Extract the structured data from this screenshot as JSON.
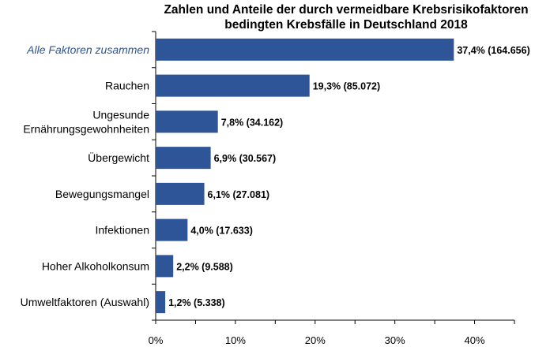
{
  "chart_data": {
    "type": "bar",
    "orientation": "horizontal",
    "title": [
      "Zahlen und Anteile der durch vermeidbare Krebsrisikofaktoren",
      "bedingten Krebsfälle in Deutschland 2018"
    ],
    "categories": [
      [
        "Alle Faktoren zusammen"
      ],
      [
        "Rauchen"
      ],
      [
        "Ungesunde",
        "Ernährungsgewohnheiten"
      ],
      [
        "Übergewicht"
      ],
      [
        "Bewegungsmangel"
      ],
      [
        "Infektionen"
      ],
      [
        "Hoher Alkoholkonsum"
      ],
      [
        "Umweltfaktoren (Auswahl)"
      ]
    ],
    "highlighted_category_index": 0,
    "values": [
      37.4,
      19.3,
      7.8,
      6.9,
      6.1,
      4.0,
      2.2,
      1.2
    ],
    "data_labels": [
      "37,4% (164.656)",
      "19,3% (85.072)",
      "7,8% (34.162)",
      "6,9% (30.567)",
      "6,1% (27.081)",
      "4,0% (17.633)",
      "2,2% (9.588)",
      "1,2% (5.338)"
    ],
    "xlim": [
      0,
      45
    ],
    "x_ticks": [
      0,
      10,
      20,
      30,
      40
    ],
    "x_tick_labels": [
      "0%",
      "10%",
      "20%",
      "30%",
      "40%"
    ],
    "x_minor_step": 5,
    "grid": false,
    "colors": {
      "bar": "#2E5597",
      "highlight_label": "#2E5597",
      "text": "#000000",
      "axis": "#000000"
    }
  }
}
